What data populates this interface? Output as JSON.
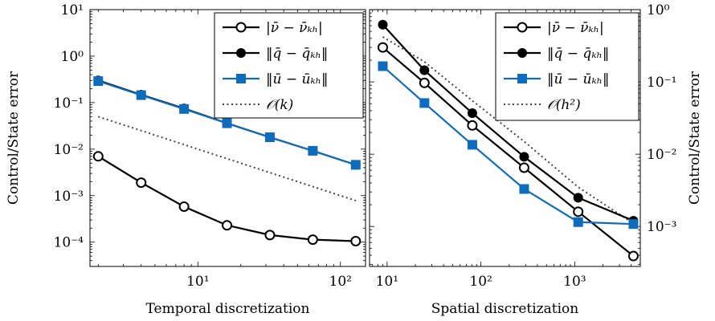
{
  "colors": {
    "black_series": "#000000",
    "blue_series": "#0f6cbd",
    "reference": "#444444"
  },
  "chart_data": [
    {
      "type": "line",
      "xlabel": "Temporal discretization",
      "ylabel": "Control/State error",
      "xscale": "log",
      "yscale": "log",
      "xlim": [
        1.75,
        150
      ],
      "ylim": [
        3e-05,
        10
      ],
      "x_ticks": [
        {
          "value": 10,
          "label": "10¹"
        },
        {
          "value": 100,
          "label": "10²"
        }
      ],
      "y_ticks": [
        {
          "value": 10,
          "label": "10¹"
        },
        {
          "value": 1,
          "label": "10⁰"
        },
        {
          "value": 0.1,
          "label": "10⁻¹"
        },
        {
          "value": 0.01,
          "label": "10⁻²"
        },
        {
          "value": 0.001,
          "label": "10⁻³"
        },
        {
          "value": 0.0001,
          "label": "10⁻⁴"
        }
      ],
      "grid": false,
      "legend_position": "top-right",
      "series": [
        {
          "name": "|ν̄ − ν̄ₖₕ|",
          "marker": "circle-open",
          "color": "#000000",
          "x": [
            2,
            4,
            8,
            16,
            32,
            64,
            128
          ],
          "y": [
            0.007,
            0.0019,
            0.00058,
            0.00023,
            0.000142,
            0.000113,
            0.000105
          ]
        },
        {
          "name": "‖q̄ − q̄ₖₕ‖",
          "marker": "circle-filled",
          "color": "#000000",
          "x": [
            2,
            4,
            8,
            16,
            32,
            64,
            128
          ],
          "y": [
            0.3,
            0.148,
            0.075,
            0.036,
            0.018,
            0.0092,
            0.0046
          ]
        },
        {
          "name": "‖ū − ūₖₕ‖",
          "marker": "square-filled",
          "color": "#0f6cbd",
          "x": [
            2,
            4,
            8,
            16,
            32,
            64,
            128
          ],
          "y": [
            0.29,
            0.145,
            0.073,
            0.036,
            0.018,
            0.0092,
            0.0046
          ]
        },
        {
          "name": "𝒪(k)",
          "marker": "none",
          "color": "#444444",
          "dashed": true,
          "x": [
            2,
            128
          ],
          "y": [
            0.05,
            0.00078
          ]
        }
      ]
    },
    {
      "type": "line",
      "xlabel": "Spatial discretization",
      "ylabel": "Control/State error",
      "xscale": "log",
      "yscale": "log",
      "xlim": [
        6.5,
        5000
      ],
      "ylim": [
        0.00028,
        1.0
      ],
      "x_ticks": [
        {
          "value": 10,
          "label": "10¹"
        },
        {
          "value": 100,
          "label": "10²"
        },
        {
          "value": 1000,
          "label": "10³"
        }
      ],
      "y_ticks": [
        {
          "value": 1,
          "label": "10⁰"
        },
        {
          "value": 0.1,
          "label": "10⁻¹"
        },
        {
          "value": 0.01,
          "label": "10⁻²"
        },
        {
          "value": 0.001,
          "label": "10⁻³"
        }
      ],
      "grid": false,
      "legend_position": "top-right",
      "series": [
        {
          "name": "|ν̄ − ν̄ₖₕ|",
          "marker": "circle-open",
          "color": "#000000",
          "x": [
            9,
            25,
            81,
            289,
            1089,
            4225
          ],
          "y": [
            0.3,
            0.097,
            0.025,
            0.0065,
            0.0016,
            0.00039
          ]
        },
        {
          "name": "‖q̄ − q̄ₖₕ‖",
          "marker": "circle-filled",
          "color": "#000000",
          "x": [
            9,
            25,
            81,
            289,
            1089,
            4225
          ],
          "y": [
            0.62,
            0.145,
            0.037,
            0.0092,
            0.0025,
            0.0012
          ]
        },
        {
          "name": "‖ū − ūₖₕ‖",
          "marker": "square-filled",
          "color": "#0f6cbd",
          "x": [
            9,
            25,
            81,
            289,
            1089,
            4225
          ],
          "y": [
            0.165,
            0.051,
            0.0135,
            0.0033,
            0.00115,
            0.00108
          ]
        },
        {
          "name": "𝒪(h²)",
          "marker": "none",
          "color": "#444444",
          "dashed": true,
          "x": [
            9,
            25,
            81,
            289,
            1089,
            4225
          ],
          "y": [
            0.42,
            0.19,
            0.055,
            0.015,
            0.0035,
            0.0011
          ]
        }
      ]
    }
  ]
}
